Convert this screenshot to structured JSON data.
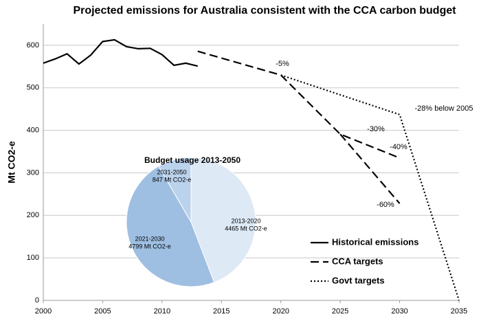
{
  "chart_data": [
    {
      "type": "line",
      "title": "Projected emissions for Australia consistent with the CCA carbon budget",
      "y_label": "Mt CO2-e",
      "xlim": [
        2000,
        2035
      ],
      "xticks": [
        2000,
        2005,
        2010,
        2015,
        2020,
        2025,
        2030,
        2035
      ],
      "ylim": [
        0,
        650
      ],
      "yticks": [
        0,
        100,
        200,
        300,
        400,
        500,
        600
      ],
      "grid": true,
      "legend": "lower right",
      "series": [
        {
          "name": "Historical emissions",
          "color": "#000000",
          "dash": "solid",
          "x": [
            2000,
            2001,
            2002,
            2003,
            2004,
            2005,
            2006,
            2007,
            2008,
            2009,
            2010,
            2011,
            2012,
            2013
          ],
          "values": [
            558,
            568,
            580,
            556,
            577,
            609,
            613,
            597,
            592,
            593,
            578,
            553,
            558,
            551
          ]
        },
        {
          "name": "CCA targets",
          "color": "#000000",
          "dash": "dashed",
          "x": [
            2013,
            2020,
            2025,
            2030,
            null,
            2025,
            2030
          ],
          "values": [
            586,
            530,
            391,
            335,
            null,
            391,
            228
          ]
        },
        {
          "name": "Govt targets",
          "color": "#000000",
          "dash": "dotted",
          "x": [
            2020,
            2030,
            2035
          ],
          "values": [
            530,
            437,
            0
          ]
        }
      ],
      "annotations": [
        "-5%",
        "-30%",
        "-40%",
        "-60%",
        "-28% below 2005"
      ]
    },
    {
      "type": "pie",
      "title": "Budget usage 2013-2050",
      "categories": [
        "2013-2020",
        "2021-2030",
        "2031-2050"
      ],
      "values": [
        4465,
        4799,
        847
      ],
      "value_labels": [
        "4465 Mt CO2-e",
        "4799 Mt CO2-e",
        "847 Mt CO2-e"
      ],
      "colors": [
        "#dde9f5",
        "#9ebfe2",
        "#bbd2ec"
      ]
    }
  ]
}
